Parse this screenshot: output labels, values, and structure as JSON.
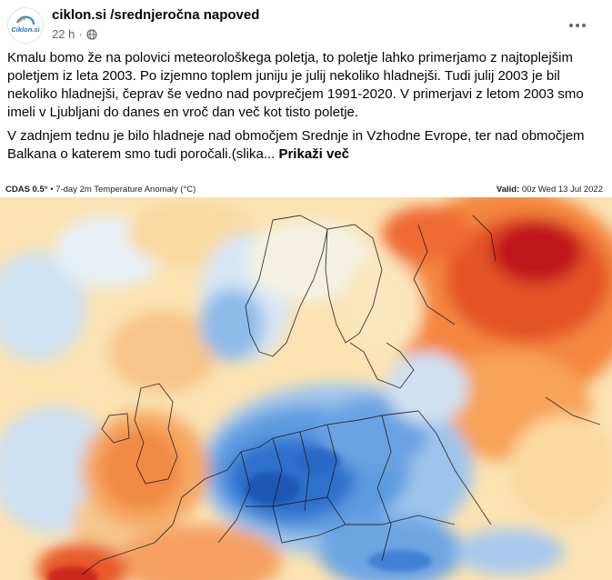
{
  "post": {
    "author": "ciklon.si /srednjeročna napoved",
    "time": "22 h",
    "separator": "·",
    "avatar_text": "Ciklon.si",
    "paragraph1": "Kmalu bomo že na polovici meteorološkega poletja, to poletje lahko primerjamo z najtoplejšim poletjem iz leta 2003. Po izjemno toplem juniju je julij nekoliko hladnejši. Tudi julij 2003 je bil nekoliko hladnejši, čeprav še vedno nad povprečjem 1991-2020. V primerjavi z letom 2003 smo imeli v Ljubljani do danes en vroč dan več kot tisto poletje.",
    "paragraph2": "V zadnjem tednu je bilo hladneje nad območjem Srednje in Vzhodne Evrope, ter nad območjem Balkana o katerem smo tudi poročali.(slika...",
    "see_more": "Prikaži več"
  },
  "figure": {
    "model": "CDAS 0.5°",
    "separator": "•",
    "title": "7-day 2m Temperature Anomaly (°C)",
    "valid_label": "Valid:",
    "valid_value": "00z Wed 13 Jul 2022"
  },
  "icons": {
    "globe": "globe-icon",
    "more": "more-options-icon",
    "avatar": "ciklon-logo"
  },
  "colors": {
    "warm_strong": "#c1121f",
    "warm": "#f4743b",
    "warm_light": "#fdd79a",
    "neutral": "#f7f3e6",
    "cool_light": "#bcd7f0",
    "cool": "#5a9ae0",
    "cool_strong": "#1f5fbf"
  }
}
